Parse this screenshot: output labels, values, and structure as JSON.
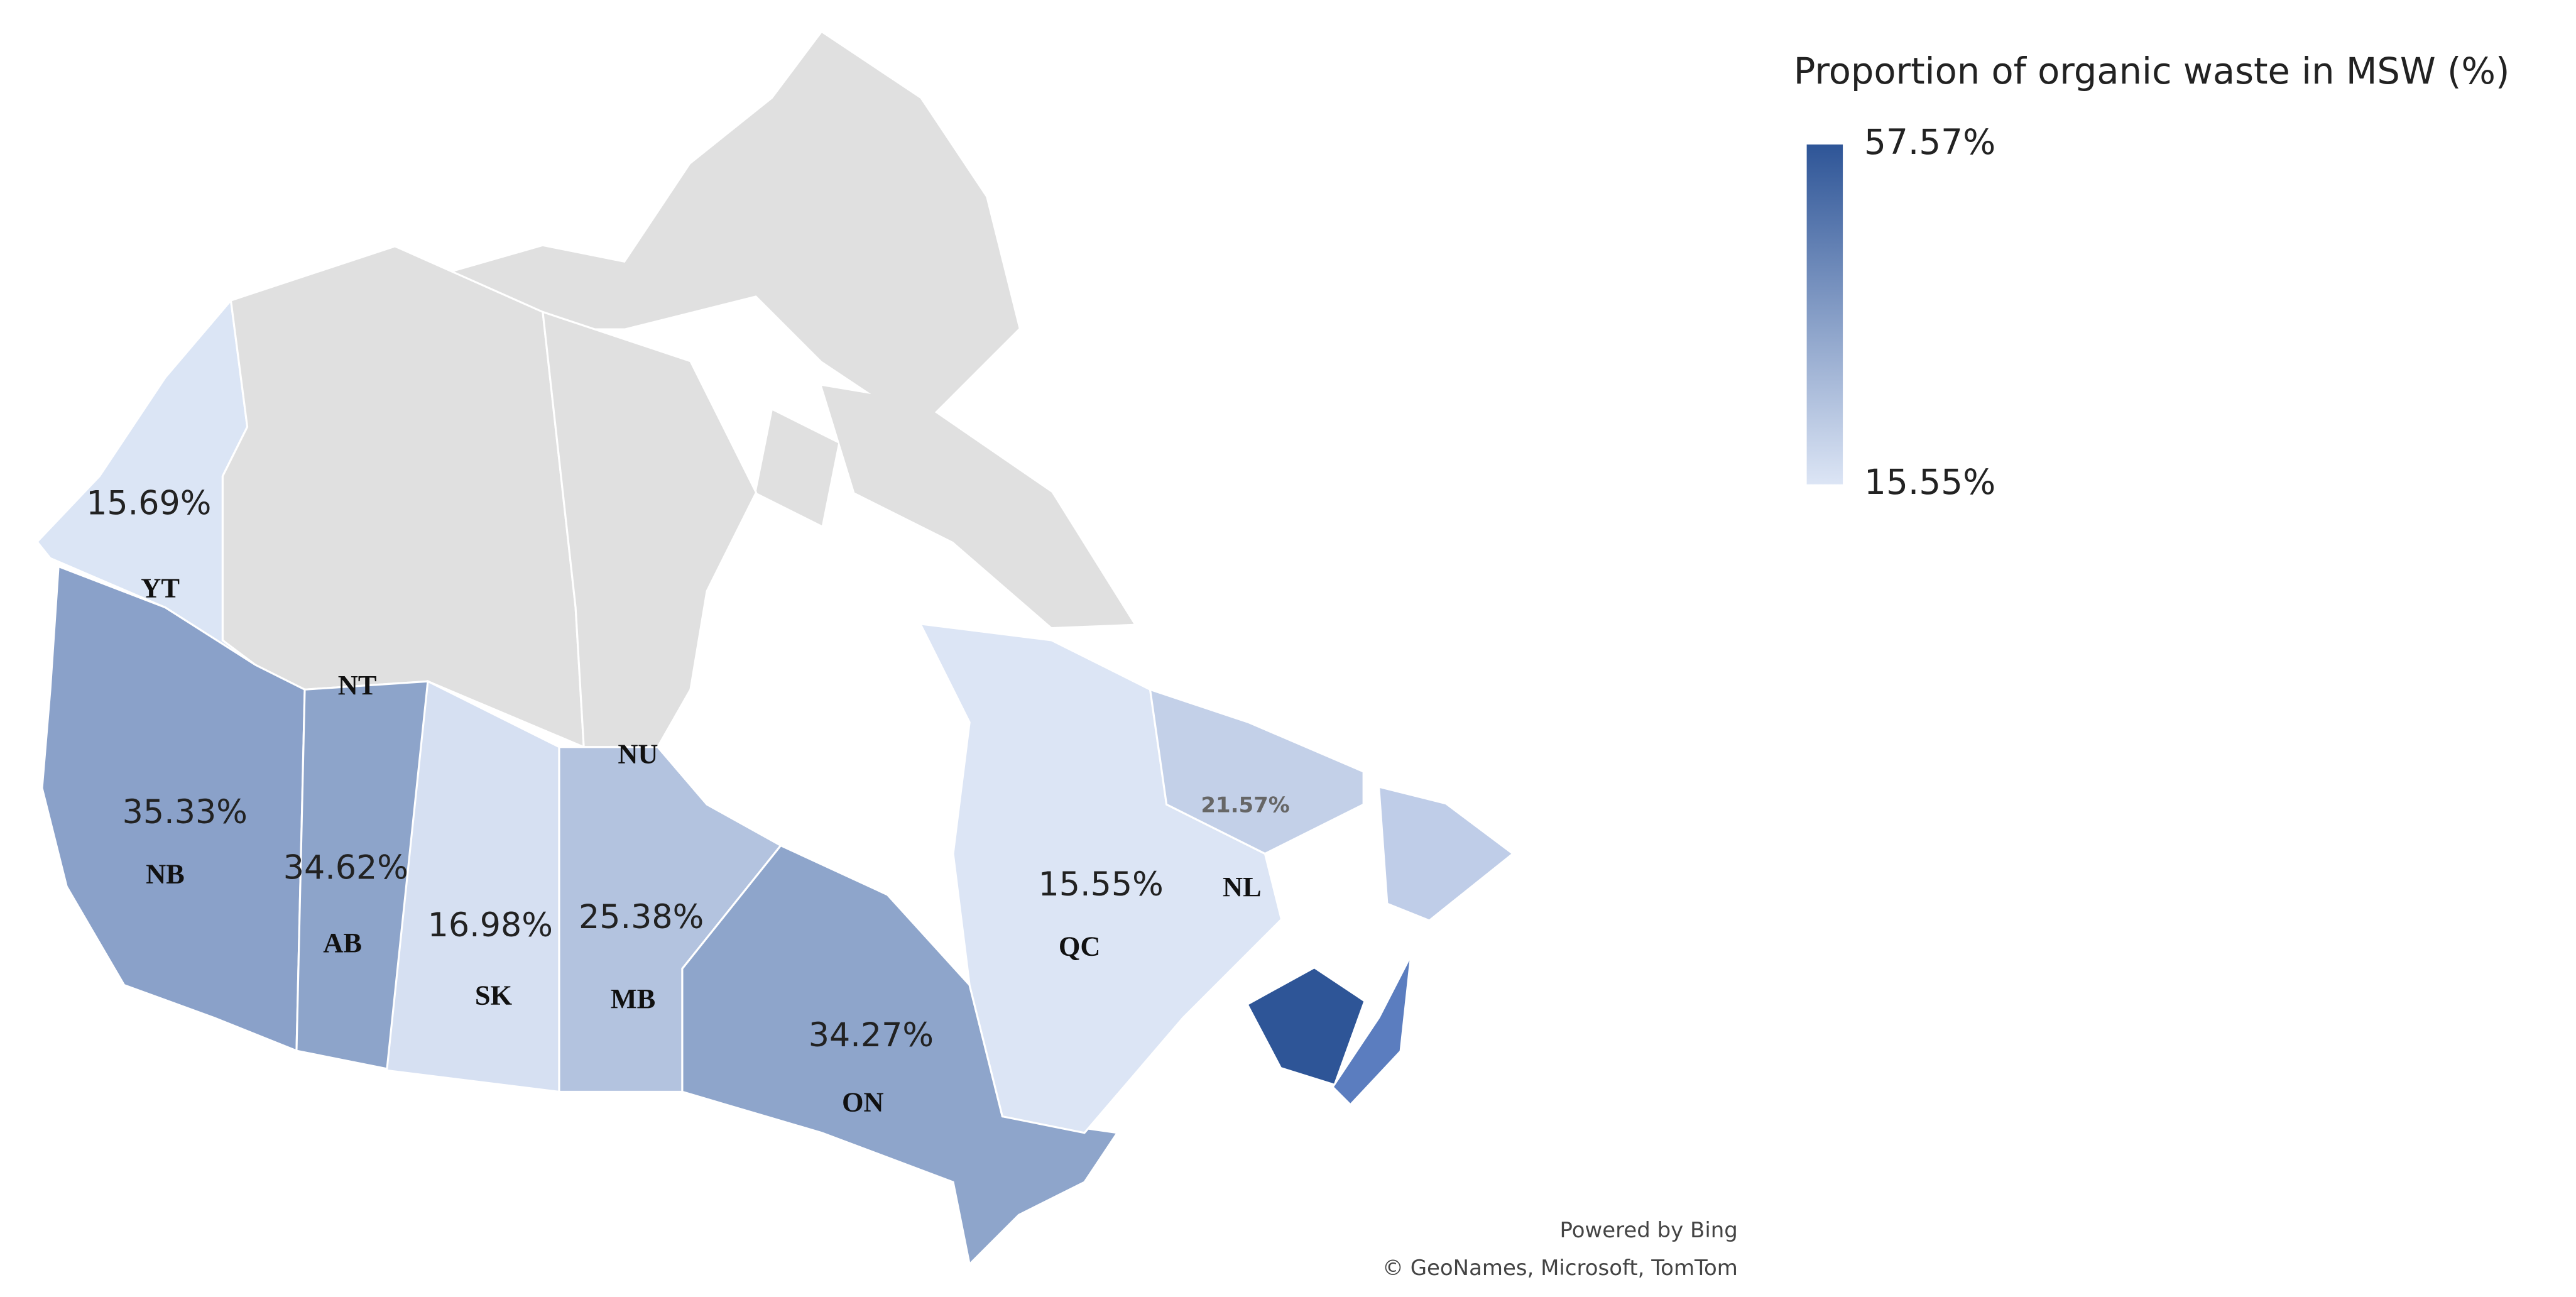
{
  "map": {
    "regions": [
      {
        "code": "YT",
        "value": 15.69,
        "value_label": "15.69%"
      },
      {
        "code": "NT"
      },
      {
        "code": "NU"
      },
      {
        "code": "NB",
        "value": 35.33,
        "value_label": "35.33%"
      },
      {
        "code": "AB",
        "value": 34.62,
        "value_label": "34.62%"
      },
      {
        "code": "SK",
        "value": 16.98,
        "value_label": "16.98%"
      },
      {
        "code": "MB",
        "value": 25.38,
        "value_label": "25.38%"
      },
      {
        "code": "ON",
        "value": 34.27,
        "value_label": "34.27%"
      },
      {
        "code": "QC",
        "value": 15.55,
        "value_label": "15.55%"
      },
      {
        "code": "NL",
        "value": 21.57,
        "value_label": "21.57%"
      }
    ],
    "legend": {
      "title": "Proportion of organic waste in MSW (%)",
      "ticks": [
        {
          "value": 15.55,
          "label": "15.55%"
        },
        {
          "value": 57.57,
          "label": "57.57%"
        }
      ],
      "colors": [
        "#dce5f5",
        "#2e5597"
      ]
    },
    "no_data_color": "#e0e0e0",
    "attribution": [
      "Powered by Bing",
      "© GeoNames, Microsoft, TomTom"
    ]
  }
}
